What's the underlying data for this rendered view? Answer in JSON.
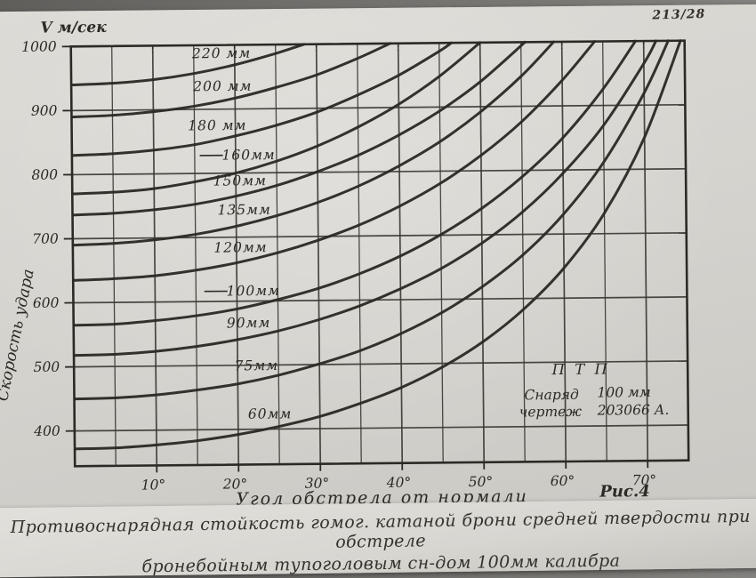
{
  "photo": {
    "corner_note": "213/28"
  },
  "chart_data": {
    "type": "line",
    "title": "",
    "xlabel": "Угол обстрела от нормали",
    "ylabel": "Скорость удара",
    "y_unit_label": "V м/сек",
    "fig_label": "Рис.4",
    "xlim": [
      0,
      75
    ],
    "ylim": [
      345,
      1000
    ],
    "x_tick_step_deg": 10,
    "grid_step_x_deg": 5,
    "grid_step_y": 100,
    "x_ticks": [
      "10°",
      "20°",
      "30°",
      "40°",
      "50°",
      "60°",
      "70°"
    ],
    "x_tick_values": [
      10,
      20,
      30,
      40,
      50,
      60,
      70
    ],
    "y_ticks": [
      "1000",
      "900",
      "800",
      "700",
      "600",
      "500",
      "400"
    ],
    "y_tick_values": [
      1000,
      900,
      800,
      700,
      600,
      500,
      400
    ],
    "legend_position": "labels-on-curves",
    "grid": true,
    "series": [
      {
        "name": "220 мм",
        "label_angle": 18.4,
        "leader": false,
        "points": [
          [
            0,
            940
          ],
          [
            5,
            942
          ],
          [
            10,
            947
          ],
          [
            15,
            956
          ],
          [
            20,
            969
          ],
          [
            25,
            986
          ],
          [
            28.5,
            1000
          ]
        ]
      },
      {
        "name": "200 мм",
        "label_angle": 18.5,
        "leader": false,
        "points": [
          [
            0,
            890
          ],
          [
            5,
            892
          ],
          [
            10,
            897
          ],
          [
            15,
            905
          ],
          [
            20,
            917
          ],
          [
            25,
            933
          ],
          [
            30,
            952
          ],
          [
            35,
            977
          ],
          [
            39,
            1000
          ]
        ]
      },
      {
        "name": "180 мм",
        "label_angle": 17.8,
        "leader": false,
        "points": [
          [
            0,
            830
          ],
          [
            5,
            832
          ],
          [
            10,
            837
          ],
          [
            15,
            845
          ],
          [
            20,
            858
          ],
          [
            25,
            874
          ],
          [
            30,
            894
          ],
          [
            35,
            920
          ],
          [
            40,
            950
          ],
          [
            45,
            987
          ],
          [
            46.5,
            1000
          ]
        ]
      },
      {
        "name": "160мм",
        "label_angle": 21.6,
        "leader": true,
        "points": [
          [
            0,
            770
          ],
          [
            5,
            772
          ],
          [
            10,
            777
          ],
          [
            15,
            787
          ],
          [
            20,
            800
          ],
          [
            25,
            818
          ],
          [
            30,
            841
          ],
          [
            35,
            870
          ],
          [
            40,
            905
          ],
          [
            45,
            948
          ],
          [
            50,
            1000
          ]
        ]
      },
      {
        "name": "150мм",
        "label_angle": 20.5,
        "leader": false,
        "points": [
          [
            0,
            737
          ],
          [
            5,
            739
          ],
          [
            10,
            744
          ],
          [
            15,
            752
          ],
          [
            20,
            764
          ],
          [
            25,
            780
          ],
          [
            30,
            801
          ],
          [
            35,
            826
          ],
          [
            40,
            857
          ],
          [
            45,
            894
          ],
          [
            50,
            939
          ],
          [
            55.5,
            1000
          ]
        ]
      },
      {
        "name": "135мм",
        "label_angle": 21.0,
        "leader": false,
        "points": [
          [
            0,
            690
          ],
          [
            5,
            692
          ],
          [
            10,
            697
          ],
          [
            15,
            705
          ],
          [
            20,
            717
          ],
          [
            25,
            733
          ],
          [
            30,
            753
          ],
          [
            35,
            778
          ],
          [
            40,
            809
          ],
          [
            45,
            846
          ],
          [
            50,
            892
          ],
          [
            55,
            947
          ],
          [
            59,
            1000
          ]
        ]
      },
      {
        "name": "120мм",
        "label_angle": 20.5,
        "leader": false,
        "points": [
          [
            0,
            635
          ],
          [
            5,
            637
          ],
          [
            10,
            641
          ],
          [
            15,
            649
          ],
          [
            20,
            660
          ],
          [
            25,
            675
          ],
          [
            30,
            694
          ],
          [
            35,
            717
          ],
          [
            40,
            746
          ],
          [
            45,
            781
          ],
          [
            50,
            824
          ],
          [
            55,
            876
          ],
          [
            60,
            940
          ],
          [
            64,
            1000
          ]
        ]
      },
      {
        "name": "100мм",
        "label_angle": 22.0,
        "leader": true,
        "points": [
          [
            0,
            565
          ],
          [
            5,
            566
          ],
          [
            10,
            571
          ],
          [
            15,
            578
          ],
          [
            20,
            588
          ],
          [
            25,
            602
          ],
          [
            30,
            619
          ],
          [
            35,
            641
          ],
          [
            40,
            668
          ],
          [
            45,
            701
          ],
          [
            50,
            741
          ],
          [
            55,
            790
          ],
          [
            60,
            850
          ],
          [
            65,
            926
          ],
          [
            69,
            1000
          ]
        ]
      },
      {
        "name": "90мм",
        "label_angle": 21.4,
        "leader": false,
        "points": [
          [
            0,
            518
          ],
          [
            5,
            519
          ],
          [
            10,
            523
          ],
          [
            15,
            530
          ],
          [
            20,
            540
          ],
          [
            25,
            553
          ],
          [
            30,
            570
          ],
          [
            35,
            591
          ],
          [
            40,
            617
          ],
          [
            45,
            648
          ],
          [
            50,
            687
          ],
          [
            55,
            735
          ],
          [
            60,
            795
          ],
          [
            65,
            869
          ],
          [
            70,
            965
          ],
          [
            71.5,
            1000
          ]
        ]
      },
      {
        "name": "75мм",
        "label_angle": 22.3,
        "leader": false,
        "points": [
          [
            0,
            450
          ],
          [
            5,
            451
          ],
          [
            10,
            455
          ],
          [
            15,
            462
          ],
          [
            20,
            471
          ],
          [
            25,
            484
          ],
          [
            30,
            501
          ],
          [
            35,
            521
          ],
          [
            40,
            547
          ],
          [
            45,
            579
          ],
          [
            50,
            619
          ],
          [
            55,
            668
          ],
          [
            60,
            731
          ],
          [
            65,
            812
          ],
          [
            70,
            919
          ],
          [
            73,
            1000
          ]
        ]
      },
      {
        "name": "60мм",
        "label_angle": 23.9,
        "leader": false,
        "points": [
          [
            0,
            372
          ],
          [
            5,
            373
          ],
          [
            10,
            377
          ],
          [
            15,
            383
          ],
          [
            20,
            392
          ],
          [
            25,
            404
          ],
          [
            30,
            419
          ],
          [
            35,
            439
          ],
          [
            40,
            463
          ],
          [
            45,
            494
          ],
          [
            50,
            533
          ],
          [
            55,
            583
          ],
          [
            60,
            647
          ],
          [
            65,
            732
          ],
          [
            70,
            850
          ],
          [
            74.5,
            1000
          ]
        ]
      }
    ],
    "annotation": {
      "title": "П Т П",
      "rows": [
        [
          "Снаряд",
          "100 мм"
        ],
        [
          "чертеж",
          "203066 А."
        ]
      ]
    }
  },
  "caption": {
    "line1": "Противоснарядная стойкость гомог. катаной брони средней твердости при обстреле",
    "line2": "бронебойным тупоголовым сн-дом  100мм калибра"
  },
  "colors": {
    "ink": "#2c2a24",
    "grid_ink": "#3a3731",
    "paper": "#d6d4cf",
    "background": "#6e6d6a"
  }
}
